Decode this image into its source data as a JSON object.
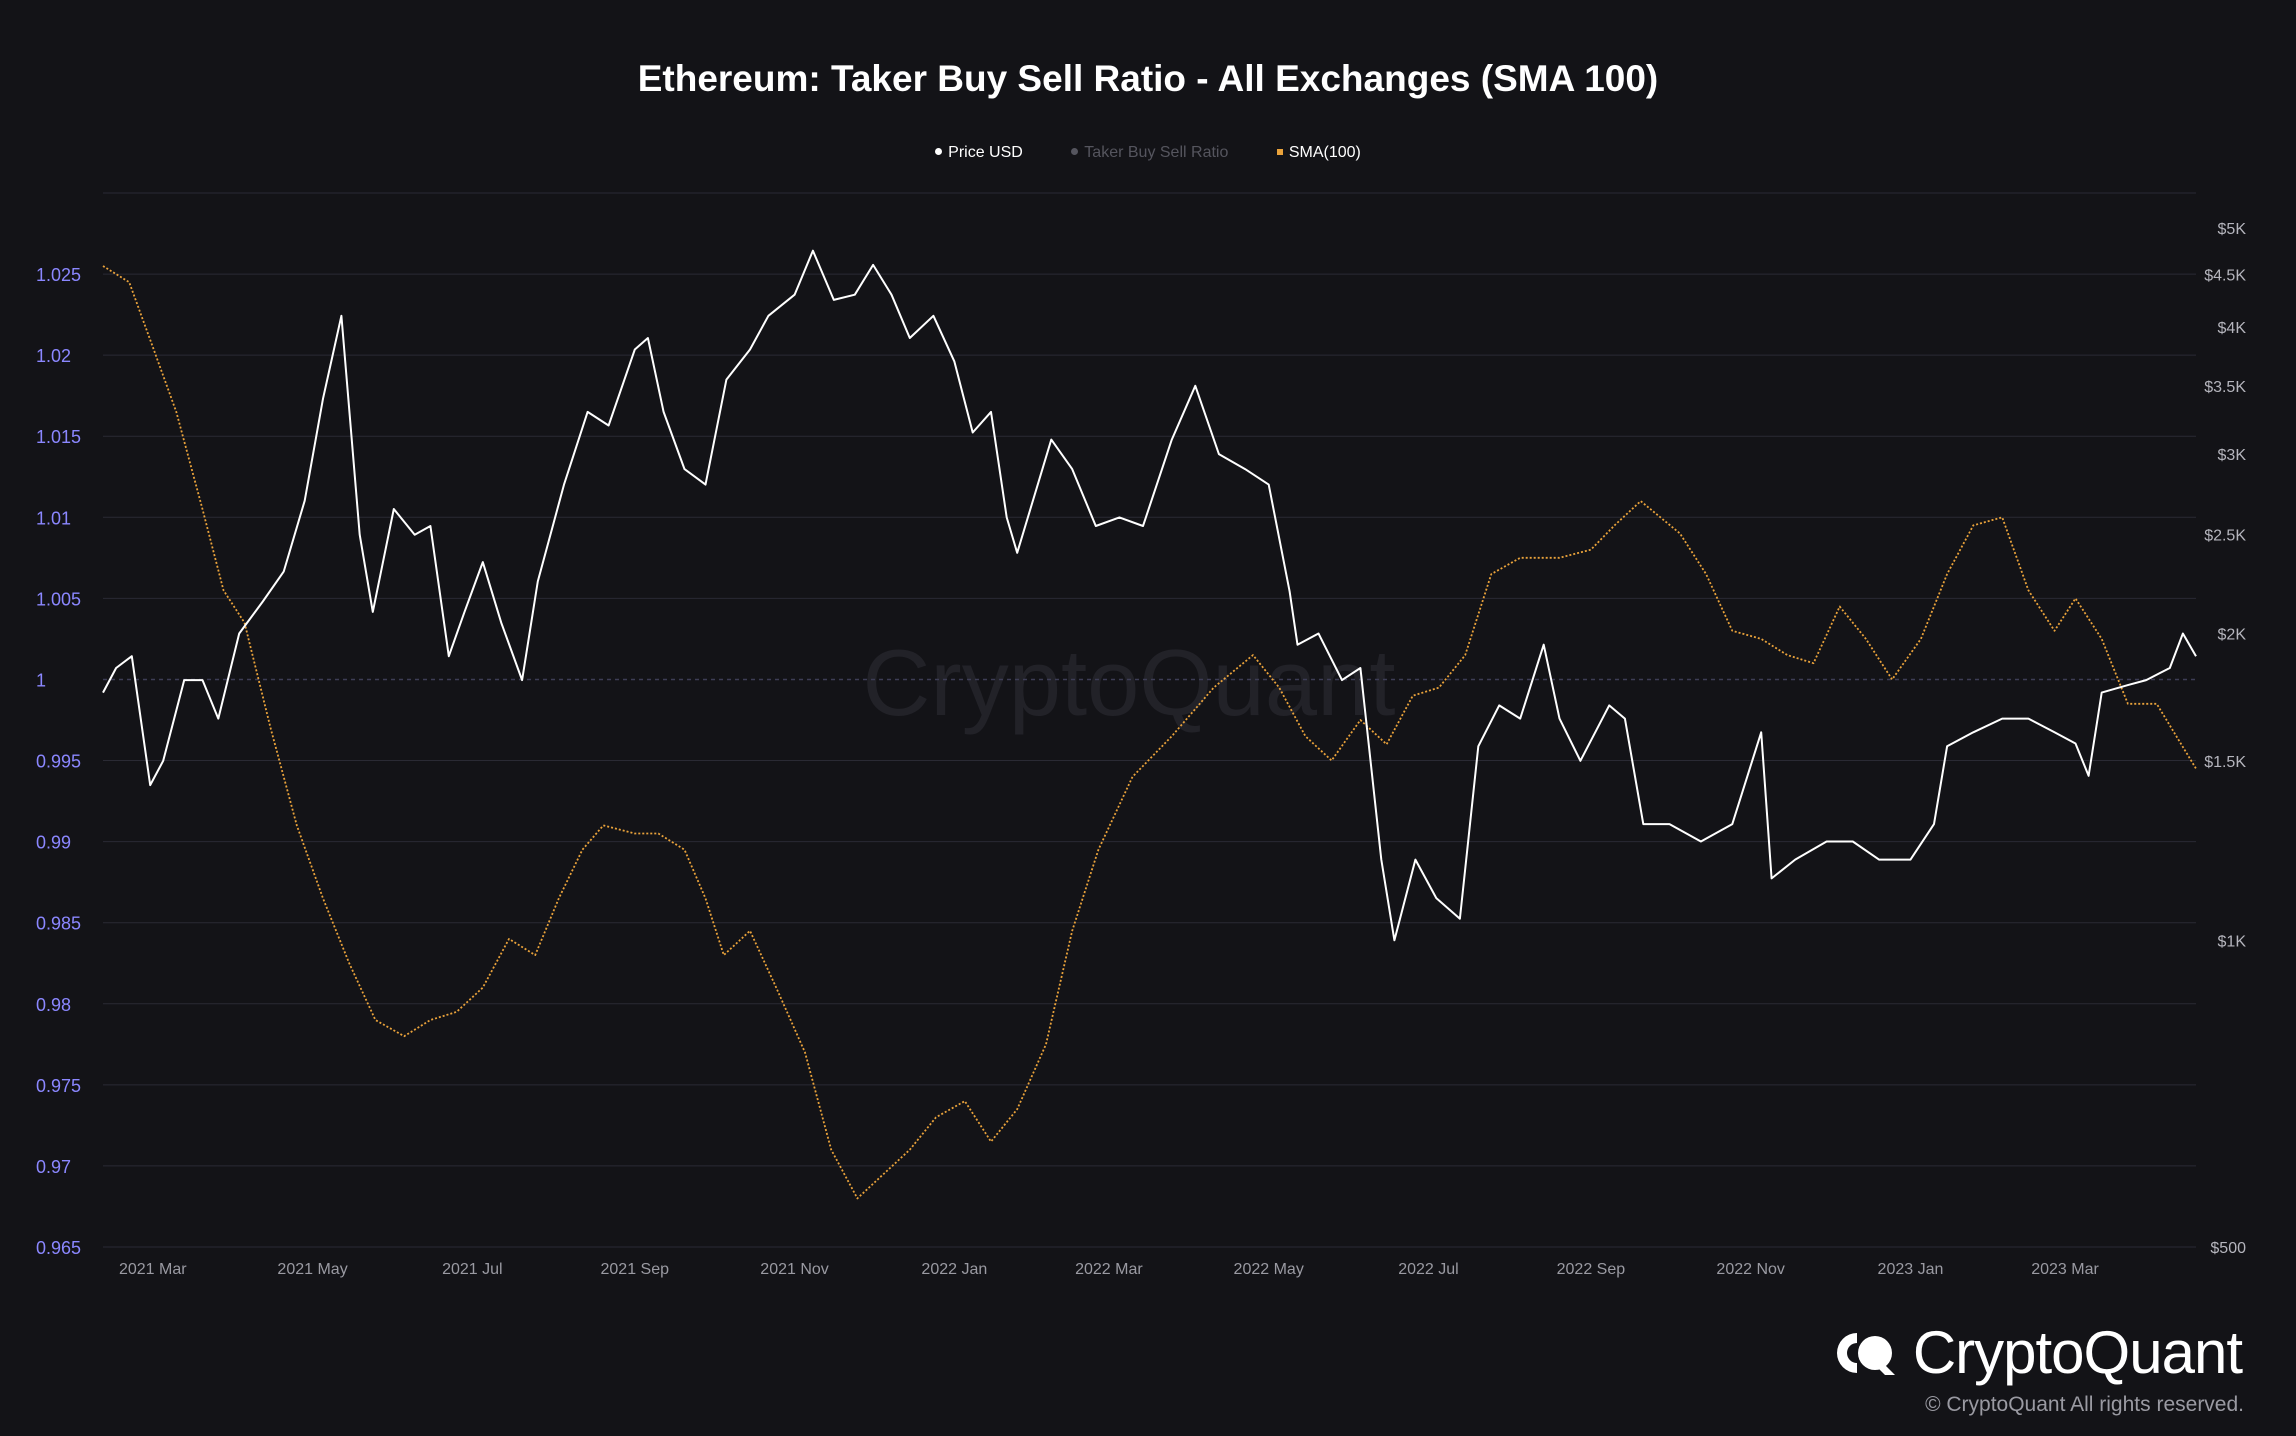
{
  "header": {
    "title": "Ethereum: Taker Buy Sell Ratio - All Exchanges (SMA 100)"
  },
  "legend": [
    {
      "label": "Price USD",
      "color": "#ffffff",
      "marker": "circle",
      "active": true
    },
    {
      "label": "Taker Buy Sell Ratio",
      "color": "#55555e",
      "marker": "circle",
      "active": false
    },
    {
      "label": "SMA(100)",
      "color": "#e9a23b",
      "marker": "square",
      "active": true
    }
  ],
  "brand": {
    "name": "CryptoQuant",
    "watermark": "CryptoQuant",
    "copyright": "© CryptoQuant All rights reserved."
  },
  "colors": {
    "background": "#131317",
    "grid": "#2a2a34",
    "left_axis_text": "#8b87ff",
    "right_axis_text": "#b5b5bd",
    "x_axis_text": "#9a9aa2",
    "price_line": "#ffffff",
    "sma_line": "#e9a23b",
    "reference_line": "#3d3d55"
  },
  "chart_data": {
    "type": "line",
    "title": "Ethereum: Taker Buy Sell Ratio - All Exchanges (SMA 100)",
    "x_range": [
      "2021-02-10",
      "2023-04-20"
    ],
    "x_ticks": [
      {
        "date": "2021-03-01",
        "label": "2021 Mar"
      },
      {
        "date": "2021-05-01",
        "label": "2021 May"
      },
      {
        "date": "2021-07-01",
        "label": "2021 Jul"
      },
      {
        "date": "2021-09-01",
        "label": "2021 Sep"
      },
      {
        "date": "2021-11-01",
        "label": "2021 Nov"
      },
      {
        "date": "2022-01-01",
        "label": "2022 Jan"
      },
      {
        "date": "2022-03-01",
        "label": "2022 Mar"
      },
      {
        "date": "2022-05-01",
        "label": "2022 May"
      },
      {
        "date": "2022-07-01",
        "label": "2022 Jul"
      },
      {
        "date": "2022-09-01",
        "label": "2022 Sep"
      },
      {
        "date": "2022-11-01",
        "label": "2022 Nov"
      },
      {
        "date": "2023-01-01",
        "label": "2023 Jan"
      },
      {
        "date": "2023-03-01",
        "label": "2023 Mar"
      }
    ],
    "left_axis": {
      "name": "Taker Buy Sell Ratio",
      "range": [
        0.965,
        1.03
      ],
      "ticks": [
        1.025,
        1.02,
        1.015,
        1.01,
        1.005,
        1,
        0.995,
        0.99,
        0.985,
        0.98,
        0.975,
        0.97,
        0.965
      ],
      "tick_labels": [
        "1.025",
        "1.02",
        "1.015",
        "1.01",
        "1.005",
        "1",
        "0.995",
        "0.99",
        "0.985",
        "0.98",
        "0.975",
        "0.97",
        "0.965"
      ],
      "reference_value": 1
    },
    "right_axis": {
      "name": "Price USD",
      "scale": "log",
      "range": [
        500,
        5300
      ],
      "ticks": [
        5000,
        4500,
        4000,
        3500,
        3000,
        2500,
        2000,
        1500,
        1000,
        500
      ],
      "tick_labels": [
        "$5K",
        "$4.5K",
        "$4K",
        "$3.5K",
        "$3K",
        "$2.5K",
        "$2K",
        "$1.5K",
        "$1K",
        "$500"
      ]
    },
    "series": [
      {
        "name": "SMA(100)",
        "axis": "left",
        "color": "#e9a23b",
        "style": "dotted",
        "points": [
          [
            "2021-02-10",
            1.0255
          ],
          [
            "2021-02-20",
            1.0245
          ],
          [
            "2021-03-01",
            1.0205
          ],
          [
            "2021-03-10",
            1.0165
          ],
          [
            "2021-03-20",
            1.0105
          ],
          [
            "2021-03-28",
            1.0055
          ],
          [
            "2021-04-05",
            1.0035
          ],
          [
            "2021-04-15",
            0.997
          ],
          [
            "2021-04-25",
            0.991
          ],
          [
            "2021-05-05",
            0.9865
          ],
          [
            "2021-05-15",
            0.9825
          ],
          [
            "2021-05-25",
            0.979
          ],
          [
            "2021-06-05",
            0.978
          ],
          [
            "2021-06-15",
            0.979
          ],
          [
            "2021-06-25",
            0.9795
          ],
          [
            "2021-07-05",
            0.981
          ],
          [
            "2021-07-15",
            0.984
          ],
          [
            "2021-07-25",
            0.983
          ],
          [
            "2021-08-03",
            0.9865
          ],
          [
            "2021-08-12",
            0.9895
          ],
          [
            "2021-08-20",
            0.991
          ],
          [
            "2021-09-01",
            0.9905
          ],
          [
            "2021-09-10",
            0.9905
          ],
          [
            "2021-09-20",
            0.9895
          ],
          [
            "2021-09-28",
            0.9865
          ],
          [
            "2021-10-05",
            0.983
          ],
          [
            "2021-10-15",
            0.9845
          ],
          [
            "2021-10-25",
            0.981
          ],
          [
            "2021-11-05",
            0.977
          ],
          [
            "2021-11-15",
            0.971
          ],
          [
            "2021-11-25",
            0.968
          ],
          [
            "2021-12-05",
            0.9695
          ],
          [
            "2021-12-15",
            0.971
          ],
          [
            "2021-12-25",
            0.973
          ],
          [
            "2022-01-05",
            0.974
          ],
          [
            "2022-01-15",
            0.9715
          ],
          [
            "2022-01-25",
            0.9735
          ],
          [
            "2022-02-05",
            0.9775
          ],
          [
            "2022-02-15",
            0.9845
          ],
          [
            "2022-02-25",
            0.9895
          ],
          [
            "2022-03-10",
            0.994
          ],
          [
            "2022-03-25",
            0.9965
          ],
          [
            "2022-04-10",
            0.9995
          ],
          [
            "2022-04-25",
            1.0015
          ],
          [
            "2022-05-05",
            0.9995
          ],
          [
            "2022-05-15",
            0.9965
          ],
          [
            "2022-05-25",
            0.995
          ],
          [
            "2022-06-05",
            0.9975
          ],
          [
            "2022-06-15",
            0.996
          ],
          [
            "2022-06-25",
            0.999
          ],
          [
            "2022-07-05",
            0.9995
          ],
          [
            "2022-07-15",
            1.0015
          ],
          [
            "2022-07-25",
            1.0065
          ],
          [
            "2022-08-05",
            1.0075
          ],
          [
            "2022-08-20",
            1.0075
          ],
          [
            "2022-09-01",
            1.008
          ],
          [
            "2022-09-10",
            1.0095
          ],
          [
            "2022-09-20",
            1.011
          ],
          [
            "2022-10-05",
            1.009
          ],
          [
            "2022-10-15",
            1.0065
          ],
          [
            "2022-10-25",
            1.003
          ],
          [
            "2022-11-05",
            1.0025
          ],
          [
            "2022-11-15",
            1.0015
          ],
          [
            "2022-11-25",
            1.001
          ],
          [
            "2022-12-05",
            1.0045
          ],
          [
            "2022-12-15",
            1.0025
          ],
          [
            "2022-12-25",
            1.0
          ],
          [
            "2023-01-05",
            1.0025
          ],
          [
            "2023-01-15",
            1.0065
          ],
          [
            "2023-01-25",
            1.0095
          ],
          [
            "2023-02-05",
            1.01
          ],
          [
            "2023-02-15",
            1.0055
          ],
          [
            "2023-02-25",
            1.003
          ],
          [
            "2023-03-05",
            1.005
          ],
          [
            "2023-03-15",
            1.0025
          ],
          [
            "2023-03-25",
            0.9985
          ],
          [
            "2023-04-05",
            0.9985
          ],
          [
            "2023-04-20",
            0.9945
          ]
        ]
      },
      {
        "name": "Price USD",
        "axis": "right",
        "color": "#ffffff",
        "style": "solid",
        "points": [
          [
            "2021-02-10",
            1750
          ],
          [
            "2021-02-15",
            1850
          ],
          [
            "2021-02-21",
            1900
          ],
          [
            "2021-02-28",
            1420
          ],
          [
            "2021-03-05",
            1500
          ],
          [
            "2021-03-13",
            1800
          ],
          [
            "2021-03-20",
            1800
          ],
          [
            "2021-03-26",
            1650
          ],
          [
            "2021-04-03",
            2000
          ],
          [
            "2021-04-12",
            2150
          ],
          [
            "2021-04-20",
            2300
          ],
          [
            "2021-04-28",
            2700
          ],
          [
            "2021-05-05",
            3400
          ],
          [
            "2021-05-12",
            4100
          ],
          [
            "2021-05-19",
            2500
          ],
          [
            "2021-05-24",
            2100
          ],
          [
            "2021-06-01",
            2650
          ],
          [
            "2021-06-09",
            2500
          ],
          [
            "2021-06-15",
            2550
          ],
          [
            "2021-06-22",
            1900
          ],
          [
            "2021-06-28",
            2100
          ],
          [
            "2021-07-05",
            2350
          ],
          [
            "2021-07-12",
            2050
          ],
          [
            "2021-07-20",
            1800
          ],
          [
            "2021-07-26",
            2250
          ],
          [
            "2021-08-05",
            2800
          ],
          [
            "2021-08-14",
            3300
          ],
          [
            "2021-08-22",
            3200
          ],
          [
            "2021-09-01",
            3800
          ],
          [
            "2021-09-06",
            3900
          ],
          [
            "2021-09-12",
            3300
          ],
          [
            "2021-09-20",
            2900
          ],
          [
            "2021-09-28",
            2800
          ],
          [
            "2021-10-06",
            3550
          ],
          [
            "2021-10-15",
            3800
          ],
          [
            "2021-10-22",
            4100
          ],
          [
            "2021-11-01",
            4300
          ],
          [
            "2021-11-08",
            4750
          ],
          [
            "2021-11-16",
            4250
          ],
          [
            "2021-11-24",
            4300
          ],
          [
            "2021-12-01",
            4600
          ],
          [
            "2021-12-08",
            4300
          ],
          [
            "2021-12-15",
            3900
          ],
          [
            "2021-12-24",
            4100
          ],
          [
            "2022-01-01",
            3700
          ],
          [
            "2022-01-08",
            3150
          ],
          [
            "2022-01-15",
            3300
          ],
          [
            "2022-01-21",
            2600
          ],
          [
            "2022-01-25",
            2400
          ],
          [
            "2022-02-07",
            3100
          ],
          [
            "2022-02-15",
            2900
          ],
          [
            "2022-02-24",
            2550
          ],
          [
            "2022-03-05",
            2600
          ],
          [
            "2022-03-14",
            2550
          ],
          [
            "2022-03-25",
            3100
          ],
          [
            "2022-04-03",
            3500
          ],
          [
            "2022-04-12",
            3000
          ],
          [
            "2022-04-22",
            2900
          ],
          [
            "2022-05-01",
            2800
          ],
          [
            "2022-05-09",
            2200
          ],
          [
            "2022-05-12",
            1950
          ],
          [
            "2022-05-20",
            2000
          ],
          [
            "2022-05-29",
            1800
          ],
          [
            "2022-06-05",
            1850
          ],
          [
            "2022-06-13",
            1200
          ],
          [
            "2022-06-18",
            1000
          ],
          [
            "2022-06-26",
            1200
          ],
          [
            "2022-07-04",
            1100
          ],
          [
            "2022-07-13",
            1050
          ],
          [
            "2022-07-20",
            1550
          ],
          [
            "2022-07-28",
            1700
          ],
          [
            "2022-08-05",
            1650
          ],
          [
            "2022-08-14",
            1950
          ],
          [
            "2022-08-20",
            1650
          ],
          [
            "2022-08-28",
            1500
          ],
          [
            "2022-09-08",
            1700
          ],
          [
            "2022-09-14",
            1650
          ],
          [
            "2022-09-21",
            1300
          ],
          [
            "2022-10-01",
            1300
          ],
          [
            "2022-10-13",
            1250
          ],
          [
            "2022-10-25",
            1300
          ],
          [
            "2022-11-05",
            1600
          ],
          [
            "2022-11-09",
            1150
          ],
          [
            "2022-11-18",
            1200
          ],
          [
            "2022-11-30",
            1250
          ],
          [
            "2022-12-10",
            1250
          ],
          [
            "2022-12-20",
            1200
          ],
          [
            "2023-01-01",
            1200
          ],
          [
            "2023-01-10",
            1300
          ],
          [
            "2023-01-15",
            1550
          ],
          [
            "2023-01-25",
            1600
          ],
          [
            "2023-02-05",
            1650
          ],
          [
            "2023-02-15",
            1650
          ],
          [
            "2023-02-25",
            1600
          ],
          [
            "2023-03-05",
            1560
          ],
          [
            "2023-03-10",
            1450
          ],
          [
            "2023-03-15",
            1750
          ],
          [
            "2023-03-25",
            1780
          ],
          [
            "2023-04-01",
            1800
          ],
          [
            "2023-04-10",
            1850
          ],
          [
            "2023-04-15",
            2000
          ],
          [
            "2023-04-20",
            1900
          ]
        ]
      }
    ],
    "legend_position": "top-center",
    "grid": true
  }
}
